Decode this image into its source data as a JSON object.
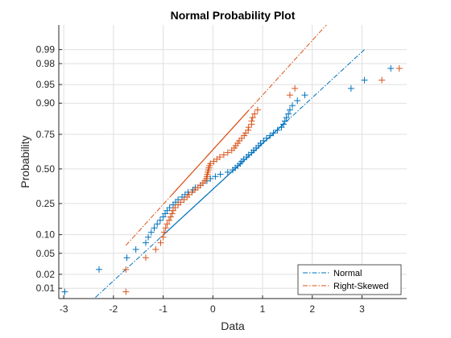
{
  "chart_data": {
    "type": "scatter",
    "title": "Normal Probability Plot",
    "xlabel": "Data",
    "ylabel": "Probability",
    "xlim": [
      -3.1,
      3.9
    ],
    "x_ticks": [
      -3,
      -2,
      -1,
      0,
      1,
      2,
      3
    ],
    "y_scale": "normal-probability",
    "y_ticks": [
      0.01,
      0.02,
      0.05,
      0.1,
      0.25,
      0.5,
      0.75,
      0.9,
      0.95,
      0.98,
      0.99
    ],
    "y_tick_labels": [
      "0.01",
      "0.02",
      "0.05",
      "0.10",
      "0.25",
      "0.50",
      "0.75",
      "0.90",
      "0.95",
      "0.98",
      "0.99"
    ],
    "grid": true,
    "legend_location": "bottom-right",
    "marker": "+",
    "series": [
      {
        "name": "Normal",
        "color": "#0072bd",
        "points": [
          [
            -2.98,
            0.0083
          ],
          [
            -2.29,
            0.025
          ],
          [
            -1.73,
            0.0417
          ],
          [
            -1.55,
            0.0583
          ],
          [
            -1.35,
            0.075
          ],
          [
            -1.3,
            0.0917
          ],
          [
            -1.24,
            0.1083
          ],
          [
            -1.18,
            0.125
          ],
          [
            -1.12,
            0.1417
          ],
          [
            -1.06,
            0.1583
          ],
          [
            -1.0,
            0.175
          ],
          [
            -0.96,
            0.1917
          ],
          [
            -0.92,
            0.2083
          ],
          [
            -0.87,
            0.225
          ],
          [
            -0.8,
            0.2417
          ],
          [
            -0.75,
            0.2583
          ],
          [
            -0.7,
            0.275
          ],
          [
            -0.62,
            0.2917
          ],
          [
            -0.56,
            0.3083
          ],
          [
            -0.5,
            0.325
          ],
          [
            -0.4,
            0.3417
          ],
          [
            -0.35,
            0.3583
          ],
          [
            -0.25,
            0.375
          ],
          [
            -0.2,
            0.3917
          ],
          [
            -0.12,
            0.4083
          ],
          [
            -0.05,
            0.425
          ],
          [
            0.05,
            0.4417
          ],
          [
            0.15,
            0.4583
          ],
          [
            0.3,
            0.475
          ],
          [
            0.4,
            0.4917
          ],
          [
            0.45,
            0.5083
          ],
          [
            0.5,
            0.525
          ],
          [
            0.55,
            0.5417
          ],
          [
            0.58,
            0.5583
          ],
          [
            0.62,
            0.575
          ],
          [
            0.68,
            0.5917
          ],
          [
            0.72,
            0.6083
          ],
          [
            0.78,
            0.625
          ],
          [
            0.82,
            0.6417
          ],
          [
            0.87,
            0.6583
          ],
          [
            0.92,
            0.675
          ],
          [
            0.96,
            0.6917
          ],
          [
            1.02,
            0.7083
          ],
          [
            1.08,
            0.725
          ],
          [
            1.15,
            0.7417
          ],
          [
            1.22,
            0.7583
          ],
          [
            1.3,
            0.775
          ],
          [
            1.38,
            0.7917
          ],
          [
            1.42,
            0.8083
          ],
          [
            1.45,
            0.825
          ],
          [
            1.48,
            0.8417
          ],
          [
            1.52,
            0.8583
          ],
          [
            1.55,
            0.875
          ],
          [
            1.6,
            0.8917
          ],
          [
            1.7,
            0.9083
          ],
          [
            1.85,
            0.925
          ],
          [
            2.78,
            0.9417
          ],
          [
            3.05,
            0.9583
          ],
          [
            3.58,
            0.975
          ]
        ],
        "fit_line": {
          "x": [
            -2.5,
            3.05
          ],
          "y": [
            0.0043,
            0.99
          ],
          "solid_x": [
            -0.96,
            1.44
          ]
        }
      },
      {
        "name": "Right-Skewed",
        "color": "#d95319",
        "points": [
          [
            -1.75,
            0.0083
          ],
          [
            -1.75,
            0.025
          ],
          [
            -1.35,
            0.0417
          ],
          [
            -1.15,
            0.0583
          ],
          [
            -1.05,
            0.075
          ],
          [
            -1.0,
            0.0917
          ],
          [
            -0.98,
            0.1083
          ],
          [
            -0.95,
            0.125
          ],
          [
            -0.92,
            0.1417
          ],
          [
            -0.88,
            0.1583
          ],
          [
            -0.85,
            0.175
          ],
          [
            -0.82,
            0.1917
          ],
          [
            -0.8,
            0.2083
          ],
          [
            -0.76,
            0.225
          ],
          [
            -0.7,
            0.2417
          ],
          [
            -0.65,
            0.2583
          ],
          [
            -0.58,
            0.275
          ],
          [
            -0.52,
            0.2917
          ],
          [
            -0.48,
            0.3083
          ],
          [
            -0.42,
            0.325
          ],
          [
            -0.36,
            0.3417
          ],
          [
            -0.3,
            0.3583
          ],
          [
            -0.25,
            0.375
          ],
          [
            -0.2,
            0.3917
          ],
          [
            -0.16,
            0.4083
          ],
          [
            -0.13,
            0.425
          ],
          [
            -0.12,
            0.4417
          ],
          [
            -0.11,
            0.4583
          ],
          [
            -0.1,
            0.475
          ],
          [
            -0.09,
            0.4917
          ],
          [
            -0.08,
            0.5083
          ],
          [
            -0.07,
            0.525
          ],
          [
            -0.05,
            0.5417
          ],
          [
            0.02,
            0.5583
          ],
          [
            0.08,
            0.575
          ],
          [
            0.14,
            0.5917
          ],
          [
            0.22,
            0.6083
          ],
          [
            0.3,
            0.625
          ],
          [
            0.38,
            0.6417
          ],
          [
            0.43,
            0.6583
          ],
          [
            0.46,
            0.675
          ],
          [
            0.5,
            0.6917
          ],
          [
            0.53,
            0.7083
          ],
          [
            0.58,
            0.725
          ],
          [
            0.63,
            0.7417
          ],
          [
            0.66,
            0.7583
          ],
          [
            0.71,
            0.775
          ],
          [
            0.72,
            0.7917
          ],
          [
            0.78,
            0.8083
          ],
          [
            0.78,
            0.825
          ],
          [
            0.8,
            0.8417
          ],
          [
            0.84,
            0.8583
          ],
          [
            0.9,
            0.875
          ],
          [
            1.55,
            0.925
          ],
          [
            1.65,
            0.9417
          ],
          [
            3.4,
            0.9583
          ],
          [
            3.75,
            0.975
          ]
        ],
        "fit_line": {
          "x": [
            -1.75,
            2.35
          ],
          "y": [
            0.068,
            0.998
          ],
          "solid_x": [
            -0.83,
            0.72
          ]
        }
      }
    ]
  }
}
